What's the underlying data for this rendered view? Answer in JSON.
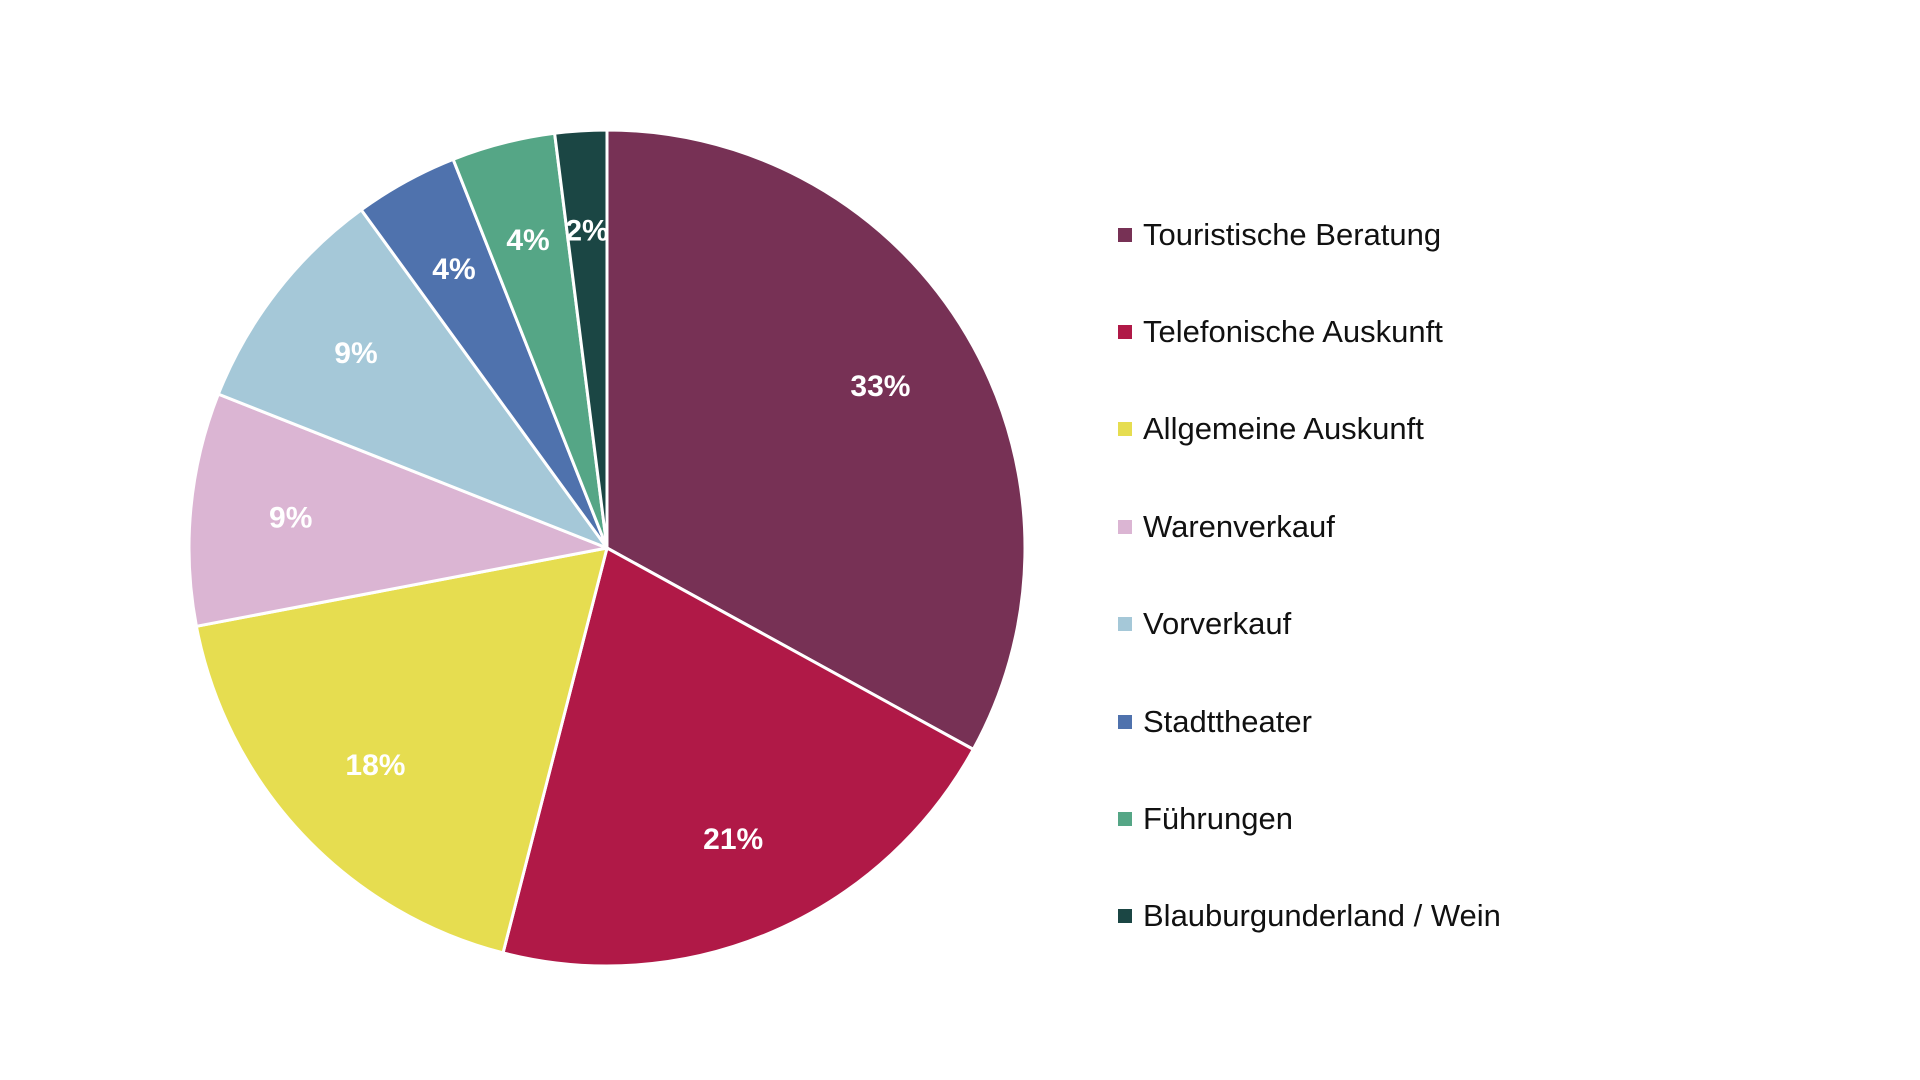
{
  "chart_data": {
    "type": "pie",
    "title": "",
    "legend_position": "right",
    "slice_border_color": "#ffffff",
    "label_color": "#ffffff",
    "slices": [
      {
        "name": "Touristische Beratung",
        "value": 33,
        "label": "33%",
        "color": "#773155"
      },
      {
        "name": "Telefonische Auskunft",
        "value": 21,
        "label": "21%",
        "color": "#b01947"
      },
      {
        "name": "Allgemeine Auskunft",
        "value": 18,
        "label": "18%",
        "color": "#e6dd50"
      },
      {
        "name": "Warenverkauf",
        "value": 9,
        "label": "9%",
        "color": "#dbb5d3"
      },
      {
        "name": "Vorverkauf",
        "value": 9,
        "label": "9%",
        "color": "#a5c8d8"
      },
      {
        "name": "Stadttheater",
        "value": 4,
        "label": "4%",
        "color": "#4f72ad"
      },
      {
        "name": "Führungen",
        "value": 4,
        "label": "4%",
        "color": "#55a686"
      },
      {
        "name": "Blauburgunderland / Wein",
        "value": 2,
        "label": "2%",
        "color": "#1b4644"
      }
    ]
  }
}
